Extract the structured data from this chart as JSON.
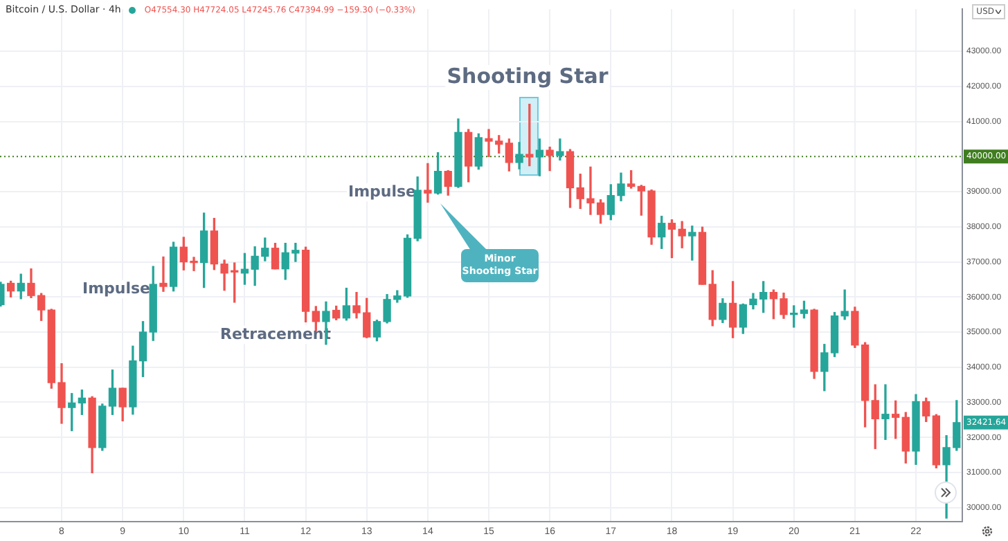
{
  "chart_data": {
    "type": "candlestick",
    "title": "Bitcoin / U.S. Dollar · 4h",
    "subtitle": "O47554.30 H47724.05 L47245.76 C47394.99 −159.30 (−0.33%)",
    "x": [
      7,
      7.167,
      7.333,
      7.5,
      7.667,
      7.833,
      8,
      8.167,
      8.333,
      8.5,
      8.667,
      8.833,
      9,
      9.167,
      9.333,
      9.5,
      9.667,
      9.833,
      10,
      10.167,
      10.333,
      10.5,
      10.667,
      10.833,
      11,
      11.167,
      11.333,
      11.5,
      11.667,
      11.833,
      12,
      12.167,
      12.333,
      12.5,
      12.667,
      12.833,
      13,
      13.167,
      13.333,
      13.5,
      13.667,
      13.833,
      14,
      14.167,
      14.333,
      14.5,
      14.667,
      14.833,
      15,
      15.167,
      15.333,
      15.5,
      15.667,
      15.833,
      16,
      16.167,
      16.333,
      16.5,
      16.667,
      16.833,
      17,
      17.167,
      17.333,
      17.5,
      17.667,
      17.833,
      18,
      18.167,
      18.333,
      18.5,
      18.667,
      18.833,
      19,
      19.167,
      19.333,
      19.5,
      19.667,
      19.833,
      20,
      20.167,
      20.333,
      20.5,
      20.667,
      20.833,
      21,
      21.167,
      21.333,
      21.5,
      21.667,
      21.833,
      22,
      22.167,
      22.333,
      22.5,
      22.667
    ],
    "ohlc": [
      [
        35780,
        36420,
        35740,
        36360
      ],
      [
        36390,
        36450,
        36000,
        36170
      ],
      [
        36170,
        36650,
        35950,
        36390
      ],
      [
        36390,
        36800,
        35980,
        36040
      ],
      [
        36040,
        36100,
        35330,
        35630
      ],
      [
        35630,
        35650,
        33400,
        33560
      ],
      [
        33560,
        34100,
        32400,
        32850
      ],
      [
        32850,
        33250,
        32190,
        32980
      ],
      [
        32980,
        33350,
        32650,
        33120
      ],
      [
        33120,
        33160,
        30990,
        31710
      ],
      [
        31710,
        32950,
        31630,
        32890
      ],
      [
        32890,
        33920,
        32650,
        33400
      ],
      [
        33400,
        33400,
        32470,
        32870
      ],
      [
        32870,
        34600,
        32660,
        34180
      ],
      [
        34180,
        35300,
        33730,
        35000
      ],
      [
        35000,
        36870,
        34760,
        36360
      ],
      [
        36390,
        37140,
        36160,
        36300
      ],
      [
        36300,
        37560,
        36170,
        37420
      ],
      [
        37420,
        37700,
        36770,
        37000
      ],
      [
        37000,
        37130,
        36750,
        36980
      ],
      [
        36980,
        38390,
        36270,
        37880
      ],
      [
        37880,
        38240,
        36780,
        36940
      ],
      [
        36940,
        37050,
        36190,
        36680
      ],
      [
        36740,
        36970,
        35850,
        36710
      ],
      [
        36680,
        37240,
        36360,
        36790
      ],
      [
        36790,
        37430,
        36330,
        37160
      ],
      [
        37160,
        37680,
        37030,
        37390
      ],
      [
        37390,
        37530,
        36800,
        36800
      ],
      [
        36800,
        37530,
        36500,
        37260
      ],
      [
        37250,
        37530,
        37010,
        37330
      ],
      [
        37330,
        37420,
        35290,
        35590
      ],
      [
        35590,
        35730,
        35050,
        35300
      ],
      [
        35300,
        35860,
        34650,
        35590
      ],
      [
        35620,
        35740,
        35350,
        35400
      ],
      [
        35400,
        36250,
        35340,
        35750
      ],
      [
        35750,
        36130,
        35400,
        35550
      ],
      [
        35550,
        35960,
        34840,
        34860
      ],
      [
        34860,
        35340,
        34750,
        35300
      ],
      [
        35300,
        36070,
        35260,
        35930
      ],
      [
        35930,
        36180,
        35850,
        36030
      ],
      [
        36030,
        37770,
        35990,
        37670
      ],
      [
        37670,
        39420,
        37600,
        39040
      ],
      [
        39040,
        39800,
        38700,
        38960
      ],
      [
        38960,
        40110,
        38930,
        39580
      ],
      [
        39580,
        39600,
        38900,
        39150
      ],
      [
        39150,
        41070,
        39120,
        40690
      ],
      [
        40690,
        40770,
        39280,
        39730
      ],
      [
        39730,
        40650,
        39640,
        40540
      ],
      [
        40510,
        40770,
        40000,
        40440
      ],
      [
        40440,
        40600,
        40100,
        40350
      ],
      [
        40380,
        40500,
        39590,
        39830
      ],
      [
        39830,
        40400,
        39650,
        40060
      ],
      [
        40060,
        41490,
        39740,
        39990
      ],
      [
        39990,
        40500,
        39450,
        40180
      ],
      [
        40180,
        40270,
        39600,
        40030
      ],
      [
        40030,
        40500,
        39900,
        40140
      ],
      [
        40140,
        40200,
        38550,
        39110
      ],
      [
        39110,
        39500,
        38520,
        38800
      ],
      [
        38800,
        39700,
        38350,
        38680
      ],
      [
        38680,
        38770,
        38100,
        38350
      ],
      [
        38350,
        39200,
        38200,
        38890
      ],
      [
        38890,
        39530,
        38740,
        39220
      ],
      [
        39220,
        39600,
        39100,
        39150
      ],
      [
        39150,
        39180,
        38330,
        39020
      ],
      [
        39020,
        39050,
        37500,
        37710
      ],
      [
        37710,
        38300,
        37380,
        38100
      ],
      [
        38100,
        38200,
        37120,
        37930
      ],
      [
        37930,
        38150,
        37400,
        37740
      ],
      [
        37740,
        38020,
        37050,
        37840
      ],
      [
        37840,
        37990,
        36360,
        36360
      ],
      [
        36360,
        36750,
        35180,
        35360
      ],
      [
        35360,
        35950,
        35270,
        35820
      ],
      [
        35820,
        36440,
        34840,
        35140
      ],
      [
        35140,
        35800,
        34960,
        35780
      ],
      [
        35780,
        36100,
        35660,
        35940
      ],
      [
        35940,
        36440,
        35560,
        36130
      ],
      [
        36130,
        36200,
        35380,
        35950
      ],
      [
        35950,
        36110,
        35390,
        35500
      ],
      [
        35500,
        35750,
        35140,
        35530
      ],
      [
        35530,
        35880,
        35400,
        35630
      ],
      [
        35630,
        35650,
        33680,
        33880
      ],
      [
        33880,
        34650,
        33330,
        34410
      ],
      [
        34410,
        35560,
        34300,
        35460
      ],
      [
        35460,
        36200,
        35360,
        35590
      ],
      [
        35590,
        35710,
        34560,
        34630
      ],
      [
        34630,
        34700,
        32300,
        33050
      ],
      [
        33050,
        33500,
        31680,
        32530
      ],
      [
        32530,
        33500,
        31940,
        32660
      ],
      [
        32660,
        33040,
        31970,
        32570
      ],
      [
        32570,
        32710,
        31270,
        31610
      ],
      [
        31610,
        33220,
        31230,
        33020
      ],
      [
        33020,
        33120,
        32450,
        32610
      ],
      [
        32610,
        32650,
        31130,
        31220
      ],
      [
        31220,
        32050,
        29700,
        31710
      ],
      [
        31710,
        33050,
        31630,
        32421.64
      ]
    ],
    "colors": [
      "#26a69a",
      "#ef5350",
      "#26a69a",
      "#ef5350",
      "#ef5350",
      "#ef5350",
      "#ef5350",
      "#26a69a",
      "#26a69a",
      "#ef5350",
      "#26a69a",
      "#26a69a",
      "#ef5350",
      "#26a69a",
      "#26a69a",
      "#26a69a",
      "#ef5350",
      "#26a69a",
      "#ef5350",
      "#ef5350",
      "#26a69a",
      "#ef5350",
      "#ef5350",
      "#ef5350",
      "#26a69a",
      "#26a69a",
      "#26a69a",
      "#ef5350",
      "#26a69a",
      "#26a69a",
      "#ef5350",
      "#ef5350",
      "#26a69a",
      "#ef5350",
      "#26a69a",
      "#ef5350",
      "#ef5350",
      "#26a69a",
      "#26a69a",
      "#26a69a",
      "#26a69a",
      "#26a69a",
      "#ef5350",
      "#26a69a",
      "#ef5350",
      "#26a69a",
      "#ef5350",
      "#26a69a",
      "#ef5350",
      "#ef5350",
      "#ef5350",
      "#26a69a",
      "#ef5350",
      "#26a69a",
      "#ef5350",
      "#26a69a",
      "#ef5350",
      "#ef5350",
      "#ef5350",
      "#ef5350",
      "#26a69a",
      "#26a69a",
      "#ef5350",
      "#ef5350",
      "#ef5350",
      "#26a69a",
      "#ef5350",
      "#ef5350",
      "#26a69a",
      "#ef5350",
      "#ef5350",
      "#26a69a",
      "#ef5350",
      "#26a69a",
      "#26a69a",
      "#26a69a",
      "#ef5350",
      "#ef5350",
      "#26a69a",
      "#26a69a",
      "#ef5350",
      "#26a69a",
      "#26a69a",
      "#26a69a",
      "#ef5350",
      "#ef5350",
      "#ef5350",
      "#26a69a",
      "#ef5350",
      "#ef5350",
      "#26a69a",
      "#ef5350",
      "#ef5350",
      "#26a69a",
      "#26a69a"
    ],
    "xlim": [
      6.99,
      22.76
    ],
    "xticks": [
      8,
      9,
      10,
      11,
      12,
      13,
      14,
      15,
      16,
      17,
      18,
      19,
      20,
      21,
      22
    ],
    "ylim": [
      29600,
      44200
    ],
    "yticks": [
      {
        "value": 30000,
        "label": "30000.00"
      },
      {
        "value": 31000,
        "label": "31000.00"
      },
      {
        "value": 32000,
        "label": "32000.00"
      },
      {
        "value": 33000,
        "label": "33000.00"
      },
      {
        "value": 34000,
        "label": "34000.00"
      },
      {
        "value": 35000,
        "label": "35000.00"
      },
      {
        "value": 36000,
        "label": "36000.00"
      },
      {
        "value": 37000,
        "label": "37000.00"
      },
      {
        "value": 38000,
        "label": "38000.00"
      },
      {
        "value": 39000,
        "label": "39000.00"
      },
      {
        "value": 41000,
        "label": "41000.00"
      },
      {
        "value": 42000,
        "label": "42000.00"
      },
      {
        "value": 43000,
        "label": "43000.00"
      }
    ],
    "ref_lines": [
      {
        "axis": "y",
        "value": 40000,
        "label": "40000.00",
        "color": "#3f7d1f",
        "line_style": "dotted"
      }
    ],
    "annotations": [
      "Shooting Star",
      "Minor Shooting Star",
      "Impulse",
      "Retracement",
      "Impulse",
      "32421.64",
      "USD"
    ],
    "grid": true,
    "legend": false
  }
}
